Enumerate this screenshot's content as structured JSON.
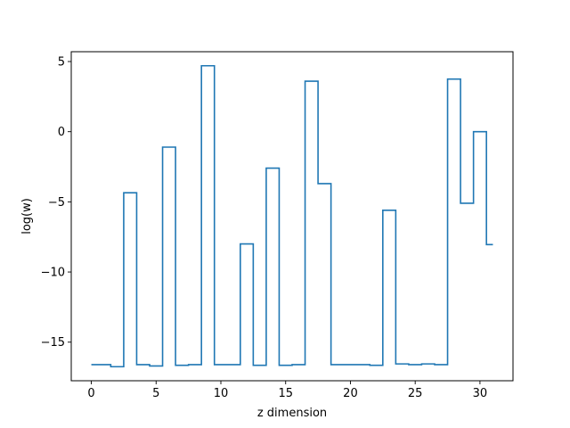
{
  "chart_data": {
    "type": "line",
    "step": "mid",
    "title": "",
    "xlabel": "z dimension",
    "ylabel": "log(w)",
    "xlim": [
      -1.55,
      32.55
    ],
    "ylim": [
      -17.75,
      5.7
    ],
    "grid": false,
    "line_color": "#1f77b4",
    "x_ticks": [
      0,
      5,
      10,
      15,
      20,
      25,
      30
    ],
    "y_ticks": [
      -15,
      -10,
      -5,
      0,
      5
    ],
    "series": [
      {
        "name": "",
        "x": [
          0,
          1,
          2,
          3,
          4,
          5,
          6,
          7,
          8,
          9,
          10,
          11,
          12,
          13,
          14,
          15,
          16,
          17,
          18,
          19,
          20,
          21,
          22,
          23,
          24,
          25,
          26,
          27,
          28,
          29,
          30,
          31
        ],
        "values": [
          -16.6,
          -16.6,
          -16.75,
          -4.35,
          -16.6,
          -16.7,
          -1.1,
          -16.65,
          -16.6,
          4.7,
          -16.6,
          -16.6,
          -8.0,
          -16.65,
          -2.6,
          -16.65,
          -16.6,
          3.6,
          -3.7,
          -16.6,
          -16.6,
          -16.6,
          -16.65,
          -5.6,
          -16.55,
          -16.6,
          -16.55,
          -16.6,
          3.75,
          -5.1,
          0.0,
          -8.05
        ]
      }
    ]
  }
}
